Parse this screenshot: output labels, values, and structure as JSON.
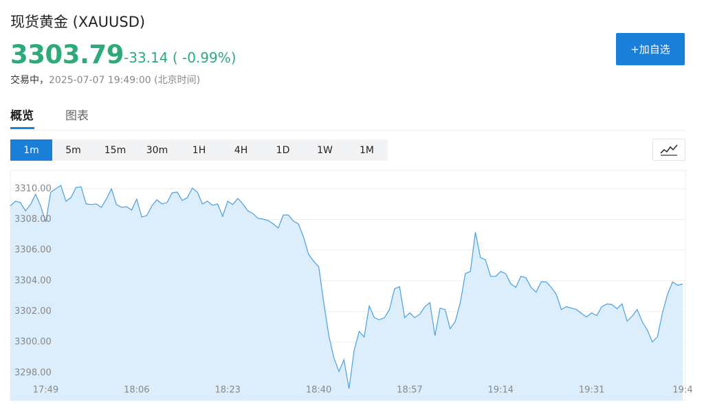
{
  "header": {
    "title": "现货黄金 (XAUUSD)",
    "price": "3303.79",
    "change": "-33.14 ( -0.99%)",
    "status": "交易中，",
    "timestamp": "2025-07-07 19:49:00",
    "timezone": "(北京时间)",
    "button": "+加自选"
  },
  "tabs": [
    "概览",
    "图表"
  ],
  "ranges": [
    "1m",
    "5m",
    "15m",
    "30m",
    "1H",
    "4H",
    "1D",
    "1W",
    "1M"
  ],
  "chart_data": {
    "type": "line",
    "color": "#4a9fe0",
    "fill": "#dcedfc",
    "categories": [
      null,
      null,
      null,
      null,
      null,
      null,
      null,
      "17:49",
      null,
      null,
      null,
      null,
      null,
      null,
      null,
      null,
      null,
      null,
      null,
      null,
      null,
      null,
      null,
      null,
      null,
      "18:06",
      null,
      null,
      null,
      null,
      null,
      null,
      null,
      null,
      null,
      null,
      null,
      null,
      null,
      null,
      null,
      null,
      null,
      "18:23",
      null,
      null,
      null,
      null,
      null,
      null,
      null,
      null,
      null,
      null,
      null,
      null,
      null,
      null,
      null,
      null,
      null,
      "18:40",
      null,
      null,
      null,
      null,
      null,
      null,
      null,
      null,
      null,
      null,
      null,
      null,
      null,
      null,
      null,
      null,
      null,
      "18:57",
      null,
      null,
      null,
      null,
      null,
      null,
      null,
      null,
      null,
      null,
      null,
      null,
      null,
      null,
      null,
      null,
      null,
      "19:14",
      null,
      null,
      null,
      null,
      null,
      null,
      null,
      null,
      null,
      null,
      null,
      null,
      null,
      null,
      null,
      null,
      null,
      "19:31",
      null,
      null,
      null,
      null,
      null,
      null,
      null,
      null,
      null,
      null,
      null,
      null,
      null,
      null,
      null,
      null,
      null,
      "19:4"
    ],
    "values": [
      3308.88,
      3309.19,
      3309.1,
      3308.56,
      3308.97,
      3309.64,
      3308.88,
      3307.84,
      3309.78,
      3310.0,
      3310.22,
      3309.19,
      3309.42,
      3310.09,
      3310.13,
      3309.01,
      3308.97,
      3309.01,
      3308.79,
      3309.33,
      3310.0,
      3308.97,
      3308.79,
      3308.83,
      3308.61,
      3309.33,
      3308.16,
      3308.25,
      3308.88,
      3309.28,
      3309.01,
      3309.1,
      3309.73,
      3309.78,
      3309.24,
      3309.42,
      3310.04,
      3309.78,
      3309.01,
      3309.19,
      3308.92,
      3309.01,
      3308.2,
      3309.19,
      3308.97,
      3309.37,
      3309.01,
      3308.56,
      3308.38,
      3308.07,
      3308.02,
      3307.93,
      3307.71,
      3307.44,
      3308.29,
      3308.29,
      3307.89,
      3307.71,
      3306.85,
      3305.73,
      3305.28,
      3304.92,
      3302.58,
      3300.43,
      3298.99,
      3298.09,
      3298.85,
      3296.97,
      3299.44,
      3300.7,
      3300.34,
      3302.36,
      3301.6,
      3301.46,
      3301.6,
      3302.13,
      3303.48,
      3303.62,
      3301.6,
      3301.91,
      3301.6,
      3301.82,
      3302.31,
      3302.58,
      3300.43,
      3302.22,
      3302.13,
      3300.88,
      3301.33,
      3302.58,
      3304.47,
      3304.61,
      3307.17,
      3305.51,
      3305.37,
      3304.29,
      3304.29,
      3304.61,
      3304.47,
      3303.8,
      3303.57,
      3304.29,
      3304.2,
      3303.57,
      3303.26,
      3303.93,
      3303.93,
      3303.57,
      3303.12,
      3302.13,
      3302.31,
      3302.22,
      3302.13,
      3301.87,
      3301.64,
      3301.91,
      3301.73,
      3302.31,
      3302.49,
      3302.45,
      3302.18,
      3302.49,
      3301.37,
      3301.69,
      3302.13,
      3301.33,
      3300.79,
      3300.02,
      3300.34,
      3301.91,
      3303.12,
      3303.93,
      3303.71,
      3303.79
    ],
    "ylim": [
      3296.2,
      3311.2
    ],
    "yticks": [
      {
        "value": 3298,
        "label": "3298.00"
      },
      {
        "value": 3300,
        "label": "3300.00"
      },
      {
        "value": 3302,
        "label": "3302.00"
      },
      {
        "value": 3304,
        "label": "3304.00"
      },
      {
        "value": 3306,
        "label": "3306.00"
      },
      {
        "value": 3308,
        "label": "3308.00"
      },
      {
        "value": 3310,
        "label": "3310.00"
      }
    ],
    "grid": true
  }
}
